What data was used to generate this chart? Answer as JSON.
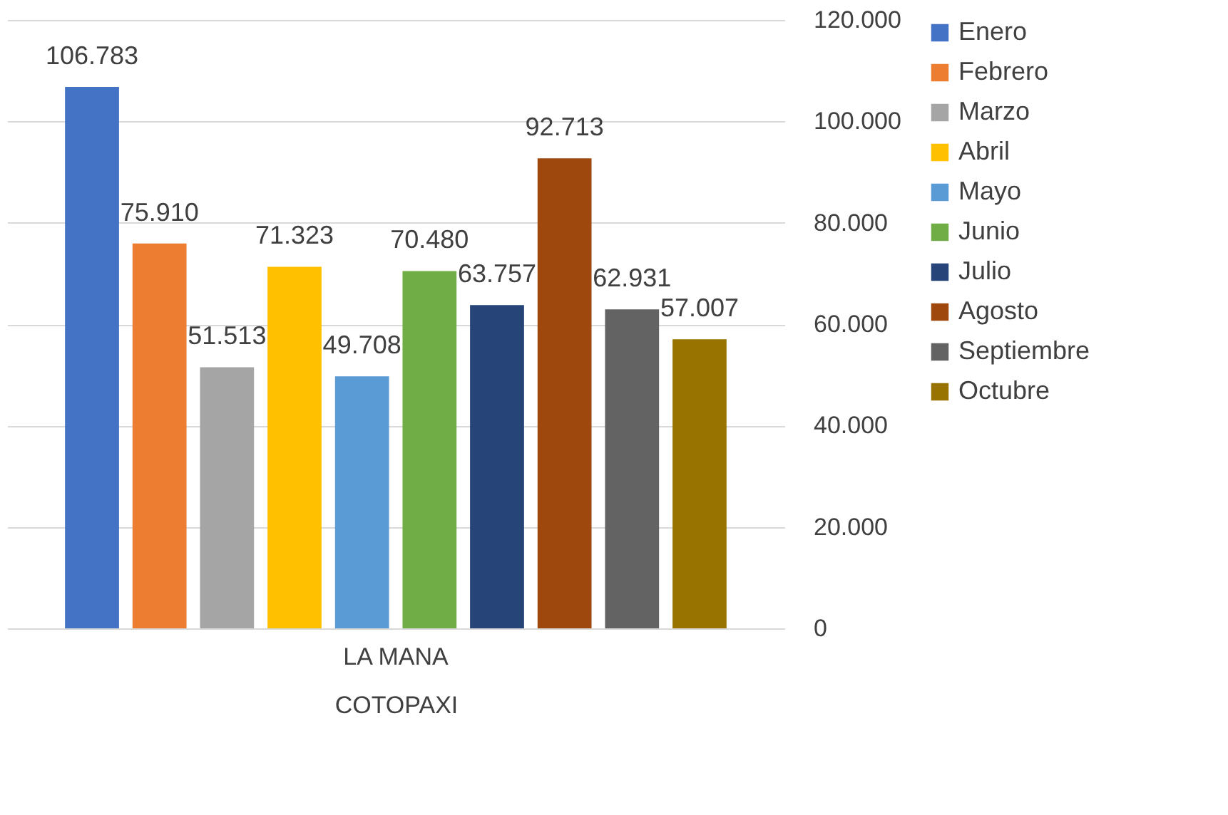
{
  "chart_data": {
    "type": "bar",
    "categories": [
      "LA MANA"
    ],
    "xlabel": "COTOPAXI",
    "series": [
      {
        "name": "Enero",
        "color": "#4472c4",
        "values": [
          106783
        ],
        "value_labels": [
          "106.783"
        ]
      },
      {
        "name": "Febrero",
        "color": "#ed7d31",
        "values": [
          75910
        ],
        "value_labels": [
          "75.910"
        ]
      },
      {
        "name": "Marzo",
        "color": "#a5a5a5",
        "values": [
          51513
        ],
        "value_labels": [
          "51.513"
        ]
      },
      {
        "name": "Abril",
        "color": "#ffc000",
        "values": [
          71323
        ],
        "value_labels": [
          "71.323"
        ]
      },
      {
        "name": "Mayo",
        "color": "#5b9bd5",
        "values": [
          49708
        ],
        "value_labels": [
          "49.708"
        ]
      },
      {
        "name": "Junio",
        "color": "#70ad47",
        "values": [
          70480
        ],
        "value_labels": [
          "70.480"
        ]
      },
      {
        "name": "Julio",
        "color": "#264478",
        "values": [
          63757
        ],
        "value_labels": [
          "63.757"
        ]
      },
      {
        "name": "Agosto",
        "color": "#9e480e",
        "values": [
          92713
        ],
        "value_labels": [
          "92.713"
        ]
      },
      {
        "name": "Septiembre",
        "color": "#636363",
        "values": [
          62931
        ],
        "value_labels": [
          "62.931"
        ]
      },
      {
        "name": "Octubre",
        "color": "#997300",
        "values": [
          57007
        ],
        "value_labels": [
          "57.007"
        ]
      }
    ],
    "ylim": [
      0,
      120000
    ],
    "yticks": [
      0,
      {
        "value": 20000,
        "label": "20.000"
      },
      {
        "value": 40000,
        "label": "40.000"
      },
      {
        "value": 60000,
        "label": "60.000"
      },
      {
        "value": 80000,
        "label": "80.000"
      },
      {
        "value": 100000,
        "label": "100.000"
      },
      {
        "value": 120000,
        "label": "120.000"
      }
    ],
    "grid": "y",
    "legend": "right"
  }
}
